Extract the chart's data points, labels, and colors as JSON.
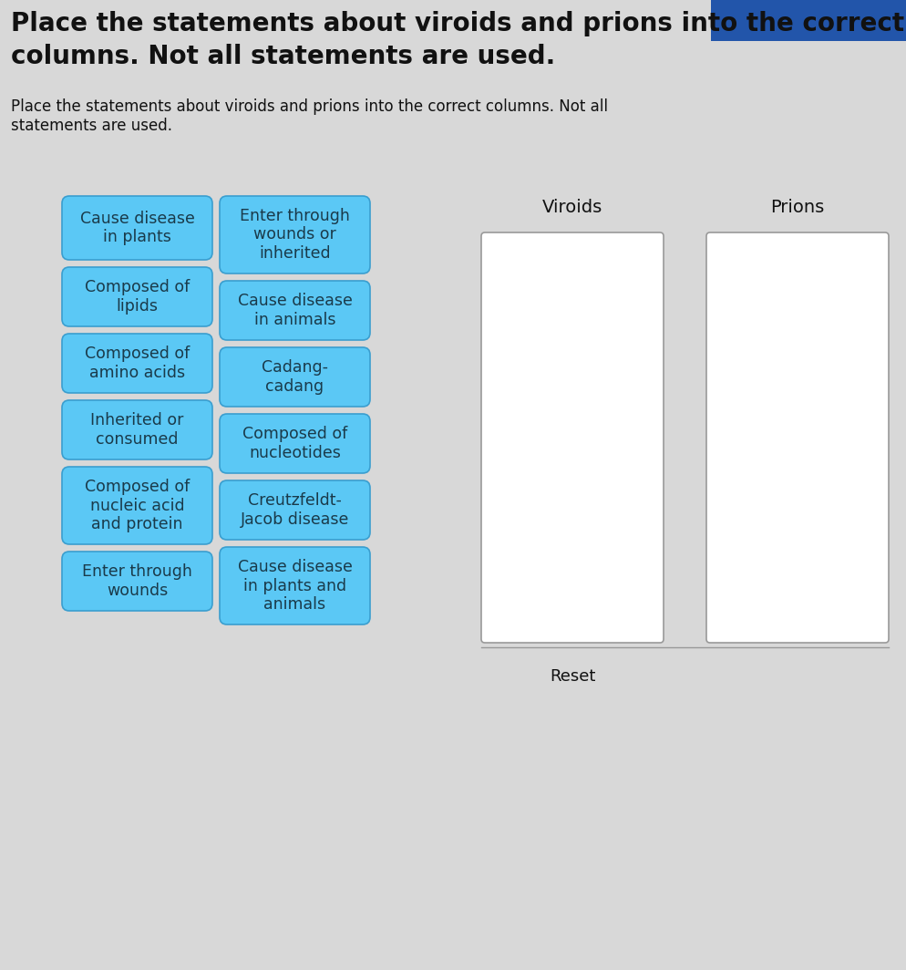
{
  "title_large_line1": "Place the statements about viroids and prions into the correct",
  "title_large_line2": "columns. Not all statements are used.",
  "title_small": "Place the statements about viroids and prions into the correct columns. Not all\nstatements are used.",
  "background_color": "#d8d8d8",
  "card_color": "#5bc8f5",
  "card_text_color": "#1a3a4a",
  "card_border_color": "#3a9ecf",
  "box_color": "#ffffff",
  "box_border_color": "#999999",
  "title_large_fontsize": 20,
  "title_small_fontsize": 12,
  "cards_left": [
    "Cause disease\nin plants",
    "Composed of\nlipids",
    "Composed of\namino acids",
    "Inherited or\nconsumed",
    "Composed of\nnucleic acid\nand protein",
    "Enter through\nwounds"
  ],
  "cards_right": [
    "Enter through\nwounds or\ninherited",
    "Cause disease\nin animals",
    "Cadang-\ncadang",
    "Composed of\nnucleotides",
    "Creutzfeldt-\nJacob disease",
    "Cause disease\nin plants and\nanimals"
  ],
  "col_labels": [
    "Viroids",
    "Prions"
  ],
  "reset_label": "Reset",
  "blue_accent_color": "#2255aa"
}
